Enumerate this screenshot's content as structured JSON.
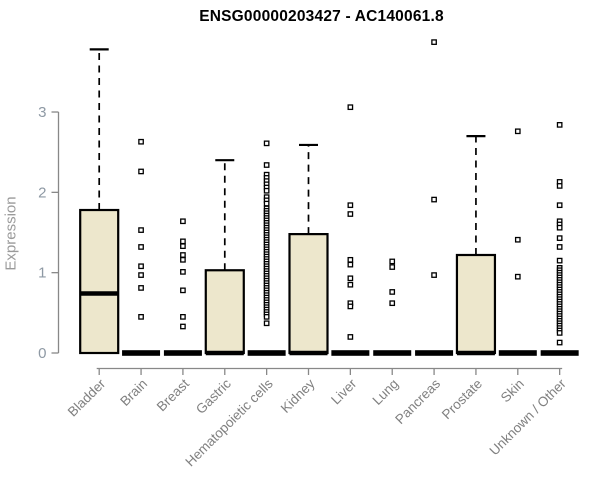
{
  "title": "ENSG00000203427 - AC140061.8",
  "y_axis": {
    "label": "Expression",
    "ticks": [
      "0",
      "1",
      "2",
      "3"
    ]
  },
  "chart_data": {
    "type": "boxplot",
    "title": "ENSG00000203427 - AC140061.8",
    "xlabel": "",
    "ylabel": "Expression",
    "ylim": [
      0,
      3.9
    ],
    "y_ticks": [
      0,
      1,
      2,
      3
    ],
    "grid": false,
    "legend": "none",
    "categories": [
      "Bladder",
      "Brain",
      "Breast",
      "Gastric",
      "Hematopoietic cells",
      "Kidney",
      "Liver",
      "Lung",
      "Pancreas",
      "Prostate",
      "Skin",
      "Unknown / Other"
    ],
    "series": [
      {
        "name": "Bladder",
        "q1": 0,
        "median": 0.74,
        "q3": 1.78,
        "whisker_low": 0,
        "whisker_high": 3.78,
        "outliers": []
      },
      {
        "name": "Brain",
        "q1": 0,
        "median": 0,
        "q3": 0,
        "whisker_low": 0,
        "whisker_high": 0,
        "outliers": [
          2.63,
          2.26,
          1.53,
          1.32,
          1.08,
          0.97,
          0.81,
          0.45
        ]
      },
      {
        "name": "Breast",
        "q1": 0,
        "median": 0,
        "q3": 0,
        "whisker_low": 0,
        "whisker_high": 0,
        "outliers": [
          1.64,
          1.39,
          1.33,
          1.22,
          1.16,
          1.01,
          0.78,
          0.45,
          0.33
        ]
      },
      {
        "name": "Gastric",
        "q1": 0,
        "median": 0,
        "q3": 1.03,
        "whisker_low": 0,
        "whisker_high": 2.4,
        "outliers": []
      },
      {
        "name": "Hematopoietic cells",
        "q1": 0,
        "median": 0,
        "q3": 0,
        "whisker_low": 0,
        "whisker_high": 0,
        "outliers": [
          2.61,
          2.34,
          2.22,
          2.18,
          2.14,
          2.1,
          2.06,
          2.02,
          1.94,
          1.9,
          1.86,
          1.8,
          1.77,
          1.74,
          1.71,
          1.68,
          1.65,
          1.62,
          1.59,
          1.56,
          1.53,
          1.5,
          1.47,
          1.44,
          1.41,
          1.38,
          1.35,
          1.32,
          1.29,
          1.26,
          1.23,
          1.2,
          1.17,
          1.14,
          1.11,
          1.08,
          1.05,
          1.02,
          0.99,
          0.96,
          0.93,
          0.9,
          0.87,
          0.84,
          0.81,
          0.78,
          0.75,
          0.72,
          0.69,
          0.66,
          0.63,
          0.6,
          0.57,
          0.54,
          0.51,
          0.48,
          0.45,
          0.37
        ]
      },
      {
        "name": "Kidney",
        "q1": 0,
        "median": 0,
        "q3": 1.48,
        "whisker_low": 0,
        "whisker_high": 2.59,
        "outliers": []
      },
      {
        "name": "Liver",
        "q1": 0,
        "median": 0,
        "q3": 0,
        "whisker_low": 0,
        "whisker_high": 0,
        "outliers": [
          3.06,
          1.84,
          1.73,
          1.16,
          1.1,
          0.93,
          0.85,
          0.62,
          0.58,
          0.2
        ]
      },
      {
        "name": "Lung",
        "q1": 0,
        "median": 0,
        "q3": 0,
        "whisker_low": 0,
        "whisker_high": 0,
        "outliers": [
          1.14,
          1.07,
          0.76,
          0.62
        ]
      },
      {
        "name": "Pancreas",
        "q1": 0,
        "median": 0,
        "q3": 0,
        "whisker_low": 0,
        "whisker_high": 0,
        "outliers": [
          3.87,
          1.91,
          0.97
        ]
      },
      {
        "name": "Prostate",
        "q1": 0,
        "median": 0,
        "q3": 1.22,
        "whisker_low": 0,
        "whisker_high": 2.7,
        "outliers": []
      },
      {
        "name": "Skin",
        "q1": 0,
        "median": 0,
        "q3": 0,
        "whisker_low": 0,
        "whisker_high": 0,
        "outliers": [
          2.76,
          1.41,
          0.95
        ]
      },
      {
        "name": "Unknown / Other",
        "q1": 0,
        "median": 0,
        "q3": 0,
        "whisker_low": 0,
        "whisker_high": 0,
        "outliers": [
          2.84,
          2.13,
          2.08,
          1.84,
          1.64,
          1.6,
          1.56,
          1.43,
          1.32,
          1.15,
          1.06,
          1.03,
          1.0,
          0.97,
          0.94,
          0.91,
          0.88,
          0.85,
          0.82,
          0.79,
          0.76,
          0.73,
          0.7,
          0.67,
          0.64,
          0.61,
          0.58,
          0.55,
          0.52,
          0.49,
          0.46,
          0.43,
          0.4,
          0.37,
          0.34,
          0.31,
          0.28,
          0.25,
          0.13
        ]
      }
    ]
  },
  "colors": {
    "box_fill": "#EDE7CC",
    "box_stroke": "#000000",
    "median": "#000000",
    "axis_line": "#888888",
    "x_label": "#808080",
    "y_tick_label": "#8e99a4",
    "y_axis_label": "#9a9a9a",
    "outlier_fill": "#ffffff",
    "outlier_stroke": "#000000",
    "background": "#ffffff",
    "title_color": "#000000"
  }
}
